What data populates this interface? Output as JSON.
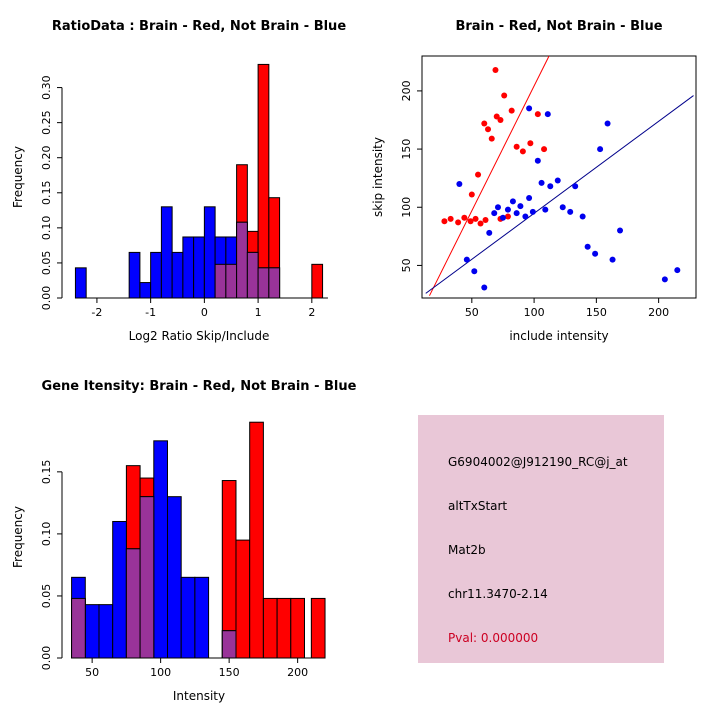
{
  "figure": {
    "bg_color": "#ffffff"
  },
  "info_box": {
    "bg_color": "#e9c7d7",
    "probe_id": "G6904002@J912190_RC@j_at",
    "event_type": "altTxStart",
    "gene": "Mat2b",
    "locus": "chr11.3470-2.14",
    "pval": "Pval: 0.000000",
    "pval_color": "#cc0022"
  },
  "chart_data": [
    {
      "type": "bar",
      "subtype": "overlaid-histogram",
      "title": "RatioData : Brain - Red, Not Brain - Blue",
      "xlabel": "Log2 Ratio Skip/Include",
      "ylabel": "Frequency",
      "xlim": [
        -2.65,
        2.45
      ],
      "ylim": [
        0,
        0.345
      ],
      "xticks": [
        -2,
        -1,
        0,
        1,
        2
      ],
      "yticks": [
        0,
        0.05,
        0.1,
        0.15,
        0.2,
        0.25,
        0.3
      ],
      "ytick_decimals": 2,
      "axis_span_x": [
        -2.4,
        2.3
      ],
      "axis_span_y": [
        0,
        0.3
      ],
      "bin_width": 0.2,
      "overlap_color": "#993399",
      "grid": false,
      "legend": "none",
      "series": [
        {
          "name": "Not Brain",
          "color": "#0000ff",
          "bins": [
            [
              -2.4,
              0.043
            ],
            [
              -1.4,
              0.065
            ],
            [
              -1.2,
              0.022
            ],
            [
              -1.0,
              0.065
            ],
            [
              -0.8,
              0.13
            ],
            [
              -0.6,
              0.065
            ],
            [
              -0.4,
              0.087
            ],
            [
              -0.2,
              0.087
            ],
            [
              0.0,
              0.13
            ],
            [
              0.2,
              0.087
            ],
            [
              0.4,
              0.087
            ],
            [
              0.6,
              0.108
            ],
            [
              0.8,
              0.065
            ],
            [
              1.0,
              0.043
            ],
            [
              1.2,
              0.043
            ]
          ]
        },
        {
          "name": "Brain",
          "color": "#ff0000",
          "bins": [
            [
              0.2,
              0.048
            ],
            [
              0.4,
              0.048
            ],
            [
              0.6,
              0.19
            ],
            [
              0.8,
              0.095
            ],
            [
              1.0,
              0.333
            ],
            [
              1.2,
              0.143
            ],
            [
              2.0,
              0.048
            ]
          ]
        }
      ]
    },
    {
      "type": "scatter",
      "title": "Brain - Red, Not Brain - Blue",
      "xlabel": "include intensity",
      "ylabel": "skip intensity",
      "xlim": [
        10,
        230
      ],
      "ylim": [
        22,
        230
      ],
      "xticks": [
        50,
        100,
        150,
        200
      ],
      "yticks": [
        50,
        100,
        150,
        200
      ],
      "ytick_decimals": 0,
      "box": true,
      "grid": false,
      "legend": "none",
      "series": [
        {
          "name": "Brain",
          "color": "#ff0000",
          "points": [
            [
              28,
              88
            ],
            [
              33,
              90
            ],
            [
              39,
              87
            ],
            [
              44,
              91
            ],
            [
              49,
              88
            ],
            [
              53,
              90
            ],
            [
              57,
              86
            ],
            [
              61,
              89
            ],
            [
              73,
              90
            ],
            [
              79,
              92
            ],
            [
              50,
              111
            ],
            [
              55,
              128
            ],
            [
              60,
              172
            ],
            [
              63,
              167
            ],
            [
              66,
              159
            ],
            [
              70,
              178
            ],
            [
              73,
              175
            ],
            [
              69,
              218
            ],
            [
              76,
              196
            ],
            [
              82,
              183
            ],
            [
              86,
              152
            ],
            [
              91,
              148
            ],
            [
              97,
              155
            ],
            [
              103,
              180
            ],
            [
              108,
              150
            ]
          ]
        },
        {
          "name": "Not Brain",
          "color": "#0000ee",
          "points": [
            [
              40,
              120
            ],
            [
              46,
              55
            ],
            [
              52,
              45
            ],
            [
              60,
              31
            ],
            [
              64,
              78
            ],
            [
              68,
              95
            ],
            [
              71,
              100
            ],
            [
              75,
              91
            ],
            [
              79,
              98
            ],
            [
              83,
              105
            ],
            [
              86,
              95
            ],
            [
              89,
              101
            ],
            [
              93,
              92
            ],
            [
              96,
              108
            ],
            [
              99,
              96
            ],
            [
              103,
              140
            ],
            [
              106,
              121
            ],
            [
              109,
              98
            ],
            [
              113,
              118
            ],
            [
              119,
              123
            ],
            [
              123,
              100
            ],
            [
              129,
              96
            ],
            [
              133,
              118
            ],
            [
              139,
              92
            ],
            [
              143,
              66
            ],
            [
              149,
              60
            ],
            [
              153,
              150
            ],
            [
              159,
              172
            ],
            [
              163,
              55
            ],
            [
              169,
              80
            ],
            [
              96,
              185
            ],
            [
              111,
              180
            ],
            [
              205,
              38
            ],
            [
              215,
              46
            ]
          ]
        }
      ],
      "lines": [
        {
          "name": "brain-fit-line",
          "color": "#ff0000",
          "x1": 16,
          "y1": 24,
          "x2": 112,
          "y2": 230
        },
        {
          "name": "notbrain-fit-line",
          "color": "#00008b",
          "x1": 13,
          "y1": 26,
          "x2": 228,
          "y2": 196
        }
      ]
    },
    {
      "type": "bar",
      "subtype": "overlaid-histogram",
      "title": "Gene Itensity: Brain - Red, Not Brain - Blue",
      "xlabel": "Intensity",
      "ylabel": "Frequency",
      "xlim": [
        28,
        228
      ],
      "ylim": [
        0,
        0.195
      ],
      "xticks": [
        50,
        100,
        150,
        200
      ],
      "yticks": [
        0,
        0.05,
        0.1,
        0.15
      ],
      "ytick_decimals": 2,
      "axis_span_x": [
        35,
        220
      ],
      "axis_span_y": [
        0,
        0.15
      ],
      "bin_width": 10,
      "overlap_color": "#993399",
      "grid": false,
      "legend": "none",
      "series": [
        {
          "name": "Not Brain",
          "color": "#0000ff",
          "bins": [
            [
              35,
              0.065
            ],
            [
              45,
              0.043
            ],
            [
              55,
              0.043
            ],
            [
              65,
              0.11
            ],
            [
              75,
              0.088
            ],
            [
              85,
              0.13
            ],
            [
              95,
              0.175
            ],
            [
              105,
              0.13
            ],
            [
              115,
              0.065
            ],
            [
              125,
              0.065
            ],
            [
              145,
              0.022
            ]
          ]
        },
        {
          "name": "Brain",
          "color": "#ff0000",
          "bins": [
            [
              35,
              0.048
            ],
            [
              75,
              0.155
            ],
            [
              85,
              0.145
            ],
            [
              145,
              0.143
            ],
            [
              155,
              0.095
            ],
            [
              165,
              0.19
            ],
            [
              175,
              0.048
            ],
            [
              185,
              0.048
            ],
            [
              195,
              0.048
            ],
            [
              210,
              0.048
            ]
          ]
        }
      ]
    }
  ]
}
